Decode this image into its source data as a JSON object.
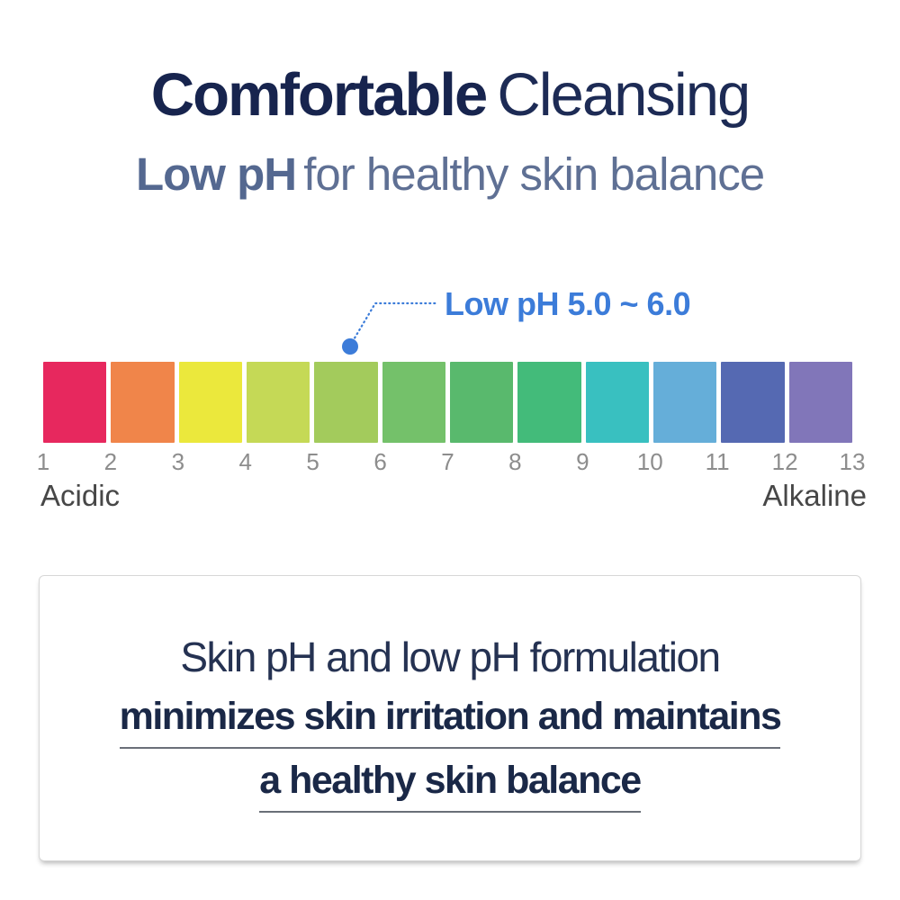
{
  "header": {
    "title_bold": "Comfortable",
    "title_light": "Cleansing",
    "subtitle_bold": "Low pH",
    "subtitle_light": "for healthy skin balance"
  },
  "callout": {
    "label": "Low pH 5.0 ~ 6.0",
    "accent_color": "#3c7cd9",
    "marked_range": "pH 5 to 6"
  },
  "scale": {
    "left_label": "Acidic",
    "right_label": "Alkaline",
    "numbers": [
      "1",
      "2",
      "3",
      "4",
      "5",
      "6",
      "7",
      "8",
      "9",
      "10",
      "11",
      "12",
      "13"
    ],
    "squares": [
      {
        "color": "#e7285e"
      },
      {
        "color": "#f0854a"
      },
      {
        "color": "#ebe83c"
      },
      {
        "color": "#c5d956"
      },
      {
        "color": "#a3cb5c"
      },
      {
        "color": "#74c16a"
      },
      {
        "color": "#59b96d"
      },
      {
        "color": "#43bb7a"
      },
      {
        "color": "#39c0c0"
      },
      {
        "color": "#65aed9"
      },
      {
        "color": "#5569b2"
      },
      {
        "color": "#8176b9"
      }
    ]
  },
  "info_box": {
    "line1": "Skin pH and low pH formulation",
    "line2": "minimizes skin irritation and maintains",
    "line3": "a healthy skin balance"
  },
  "colors": {
    "title_navy": "#17244e",
    "subtitle_slate": "#546890",
    "number_gray": "#8d8d8d",
    "box_border": "#d7d7d7",
    "underline_gray": "#6a6f78"
  }
}
